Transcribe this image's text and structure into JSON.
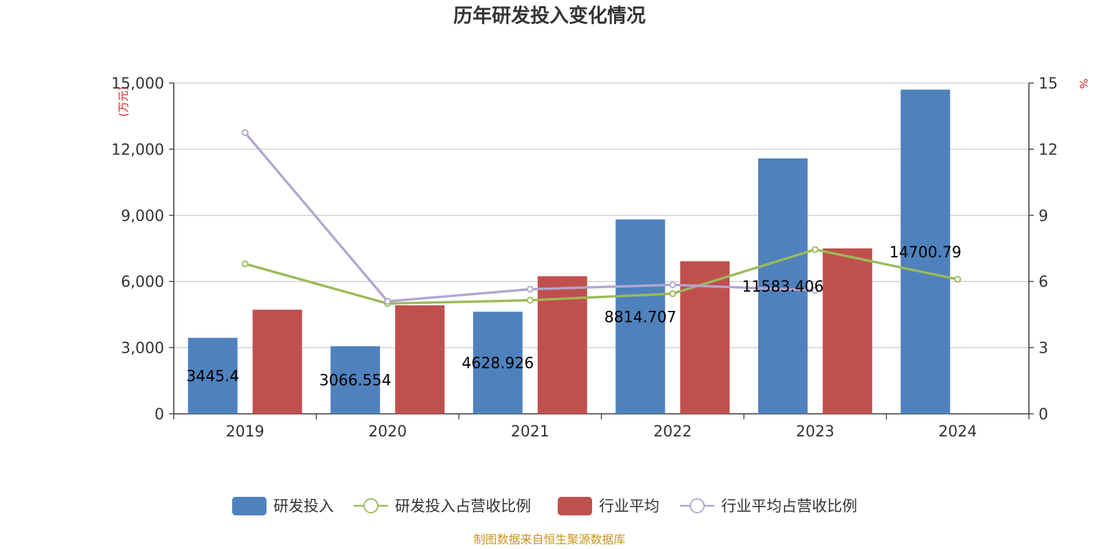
{
  "chart_data": {
    "type": "bar",
    "title": "历年研发投入变化情况",
    "categories": [
      "2019",
      "2020",
      "2021",
      "2022",
      "2023",
      "2024"
    ],
    "left_axis": {
      "unit": "(万元)",
      "min": 0,
      "max": 15000,
      "ticks": [
        "0",
        "3,000",
        "6,000",
        "9,000",
        "12,000",
        "15,000"
      ]
    },
    "right_axis": {
      "unit": "%",
      "min": 0,
      "max": 15,
      "ticks": [
        "0",
        "3",
        "6",
        "9",
        "12",
        "15"
      ]
    },
    "series": [
      {
        "name": "研发投入",
        "kind": "bar",
        "axis": "left",
        "color": "#4f81bd",
        "values": [
          3445.4,
          3066.554,
          4628.926,
          8814.707,
          11583.406,
          14700.79
        ],
        "labels": [
          "3445.4",
          "3066.554",
          "4628.926",
          "8814.707",
          "11583.406",
          "14700.79"
        ]
      },
      {
        "name": "研发投入占营收比例",
        "kind": "line",
        "axis": "right",
        "color": "#9bbb59",
        "values": [
          6.8,
          5.0,
          5.15,
          5.45,
          7.45,
          6.1
        ]
      },
      {
        "name": "行业平均",
        "kind": "bar",
        "axis": "left",
        "color": "#c0504d",
        "values": [
          4720,
          4920,
          6240,
          6920,
          7500,
          null
        ]
      },
      {
        "name": "行业平均占营收比例",
        "kind": "line",
        "axis": "right",
        "color": "#b3a6cf",
        "values": [
          12.75,
          5.1,
          5.65,
          5.85,
          5.6,
          null
        ]
      }
    ],
    "grid": true,
    "legend_position": "bottom",
    "source": "制图数据来自恒生聚源数据库"
  }
}
